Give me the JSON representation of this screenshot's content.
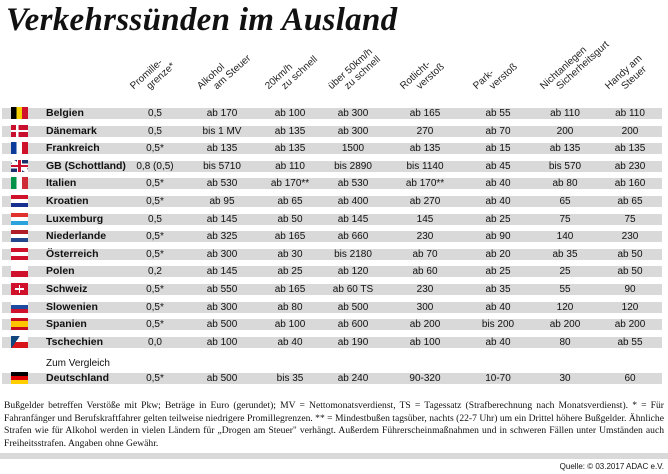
{
  "title": "Verkehrssünden im Ausland",
  "columns": [
    [
      "Promille-",
      "grenze*"
    ],
    [
      "Alkohol",
      "am Steuer"
    ],
    [
      "20km/h",
      "zu schnell"
    ],
    [
      "über 50km/h",
      "zu schnell"
    ],
    [
      "Rotlicht-",
      "verstoß"
    ],
    [
      "Park-",
      "verstoß"
    ],
    [
      "Nichtanlegen",
      "Sicherheitsgurt"
    ],
    [
      "Handy am",
      "Steuer"
    ]
  ],
  "rows": [
    {
      "country": "Belgien",
      "flag": "be",
      "values": [
        "0,5",
        "ab 170",
        "ab 100",
        "ab 300",
        "ab 165",
        "ab 55",
        "ab 110",
        "ab 110"
      ]
    },
    {
      "country": "Dänemark",
      "flag": "dk",
      "values": [
        "0,5",
        "bis 1 MV",
        "ab 135",
        "ab 300",
        "270",
        "ab 70",
        "200",
        "200"
      ]
    },
    {
      "country": "Frankreich",
      "flag": "fr",
      "values": [
        "0,5*",
        "ab 135",
        "ab 135",
        "1500",
        "ab 135",
        "ab 15",
        "ab 135",
        "ab 135"
      ]
    },
    {
      "country": "GB (Schottland)",
      "flag": "gb",
      "values": [
        "0,8 (0,5)",
        "bis 5710",
        "ab 110",
        "bis 2890",
        "bis 1140",
        "ab 45",
        "bis 570",
        "ab 230"
      ]
    },
    {
      "country": "Italien",
      "flag": "it",
      "values": [
        "0,5*",
        "ab 530",
        "ab 170**",
        "ab 530",
        "ab 170**",
        "ab 40",
        "ab 80",
        "ab 160"
      ]
    },
    {
      "country": "Kroatien",
      "flag": "hr",
      "values": [
        "0,5*",
        "ab 95",
        "ab 65",
        "ab 400",
        "ab 270",
        "ab 40",
        "65",
        "ab 65"
      ]
    },
    {
      "country": "Luxemburg",
      "flag": "lu",
      "values": [
        "0,5",
        "ab 145",
        "ab 50",
        "ab 145",
        "145",
        "ab 25",
        "75",
        "75"
      ]
    },
    {
      "country": "Niederlande",
      "flag": "nl",
      "values": [
        "0,5*",
        "ab 325",
        "ab 165",
        "ab 660",
        "230",
        "ab 90",
        "140",
        "230"
      ]
    },
    {
      "country": "Österreich",
      "flag": "at",
      "values": [
        "0,5*",
        "ab 300",
        "ab 30",
        "bis 2180",
        "ab 70",
        "ab 20",
        "ab 35",
        "ab 50"
      ]
    },
    {
      "country": "Polen",
      "flag": "pl",
      "values": [
        "0,2",
        "ab 145",
        "ab 25",
        "ab 120",
        "ab 60",
        "ab 25",
        "25",
        "ab 50"
      ]
    },
    {
      "country": "Schweiz",
      "flag": "ch",
      "values": [
        "0,5*",
        "ab 550",
        "ab 165",
        "ab 60 TS",
        "230",
        "ab 35",
        "55",
        "90"
      ]
    },
    {
      "country": "Slowenien",
      "flag": "si",
      "values": [
        "0,5*",
        "ab 300",
        "ab 80",
        "ab 500",
        "300",
        "ab 40",
        "120",
        "120"
      ]
    },
    {
      "country": "Spanien",
      "flag": "es",
      "values": [
        "0,5*",
        "ab 500",
        "ab 100",
        "ab 600",
        "ab 200",
        "bis 200",
        "ab 200",
        "ab 200"
      ]
    },
    {
      "country": "Tschechien",
      "flag": "cz",
      "values": [
        "0,0",
        "ab 100",
        "ab 40",
        "ab 190",
        "ab 100",
        "ab 40",
        "80",
        "ab 55"
      ]
    }
  ],
  "comparison_label": "Zum Vergleich",
  "comparison": {
    "country": "Deutschland",
    "flag": "de",
    "values": [
      "0,5*",
      "ab 500",
      "bis 35",
      "ab 240",
      "90-320",
      "10-70",
      "30",
      "60"
    ]
  },
  "footnote": "Bußgelder betreffen Verstöße mit Pkw; Beträge in Euro (gerundet); MV = Nettomonatsverdienst, TS = Tagessatz (Strafberechnung nach Monatsverdienst). * = Für Fahranfänger und Berufskraftfahrer gelten teilweise niedrigere Promillegrenzen. ** = Mindestbußen tagsüber, nachts (22-7 Uhr) um ein Drittel höhere Bußgelder. Ähnliche Strafen wie für Alkohol werden in vielen Ländern für „Drogen am Steuer\" verhängt. Außerdem Führerscheinmaßnahmen und in schweren Fällen unter Umständen auch Freiheitsstrafen. Angaben ohne Gewähr.",
  "source": "Quelle: © 03.2017 ADAC e.V.",
  "colors": {
    "band": "#d9d9d9"
  }
}
